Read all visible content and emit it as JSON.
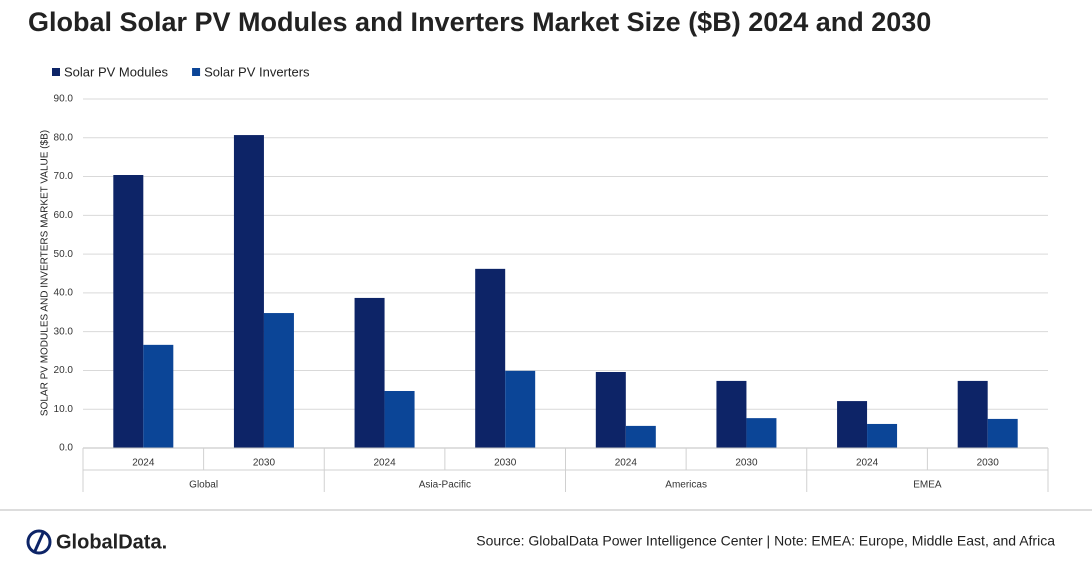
{
  "chart_data": {
    "type": "bar",
    "title": "Global Solar PV Modules and Inverters Market Size ($B) 2024 and 2030",
    "y_label": "SOLAR PV MODULES AND INVERTERS MARKET VALUE ($B)",
    "categories": [
      "2024",
      "2030",
      "2024",
      "2030",
      "2024",
      "2030",
      "2024",
      "2030"
    ],
    "groups": [
      "Global",
      "Asia-Pacific",
      "Americas",
      "EMEA"
    ],
    "series": [
      {
        "name": "Solar PV Modules",
        "color": "#0d2467",
        "values": [
          70.4,
          80.7,
          38.7,
          46.2,
          19.6,
          17.3,
          12.1,
          17.3
        ]
      },
      {
        "name": "Solar PV Inverters",
        "color": "#0b4597",
        "values": [
          26.6,
          34.8,
          14.7,
          19.9,
          5.7,
          7.7,
          6.2,
          7.5
        ]
      }
    ],
    "ylim": [
      0,
      90
    ],
    "yticks": [
      {
        "value": 0,
        "label": "0.0"
      },
      {
        "value": 10,
        "label": "10.0"
      },
      {
        "value": 20,
        "label": "20.0"
      },
      {
        "value": 30,
        "label": "30.0"
      },
      {
        "value": 40,
        "label": "40.0"
      },
      {
        "value": 50,
        "label": "50.0"
      },
      {
        "value": 60,
        "label": "60.0"
      },
      {
        "value": 70,
        "label": "70.0"
      },
      {
        "value": 80,
        "label": "80.0"
      },
      {
        "value": 90,
        "label": "90.0"
      }
    ],
    "grid": true,
    "legend": "top-left",
    "source": "Source: GlobalData Power Intelligence Center | Note: EMEA: Europe, Middle East, and Africa",
    "logo": "GlobalData."
  }
}
